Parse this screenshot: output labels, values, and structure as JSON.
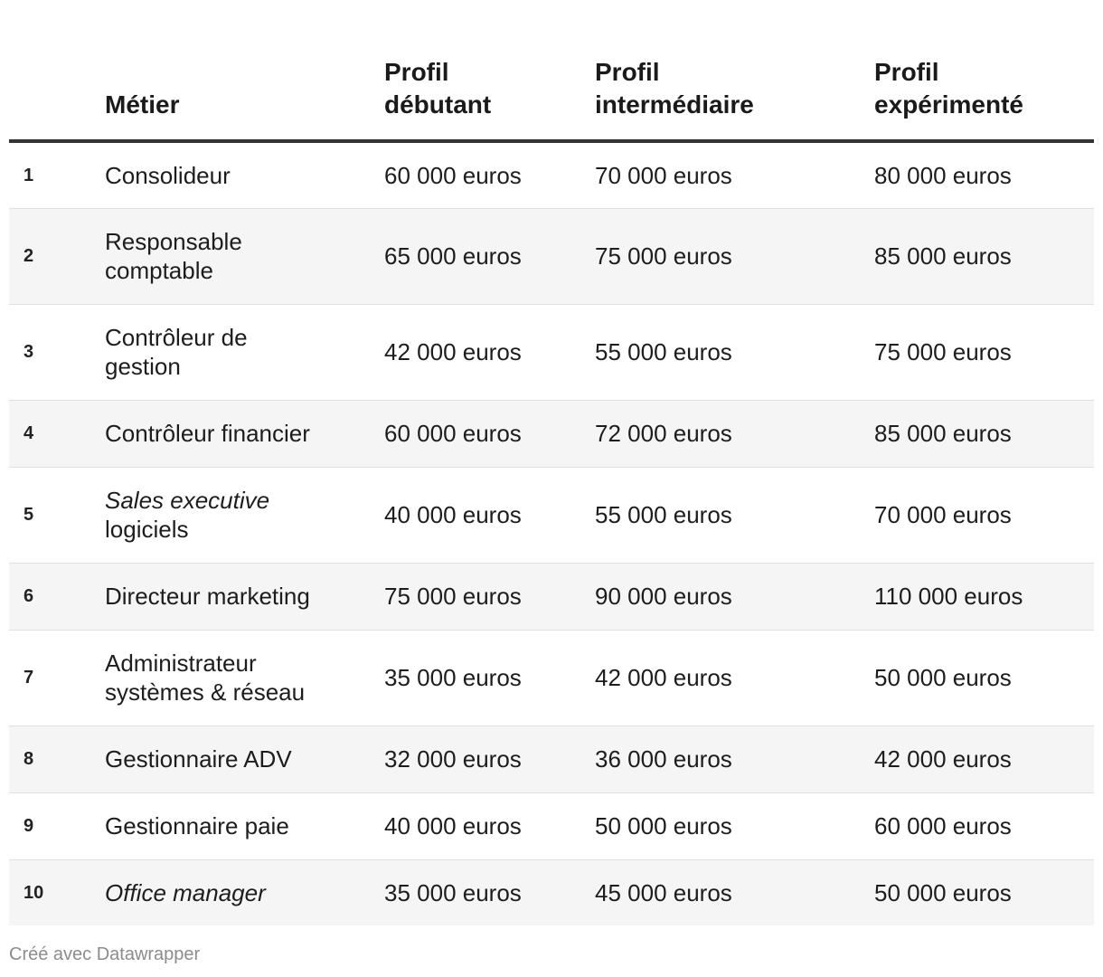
{
  "table": {
    "headers": {
      "rank": "",
      "metier": "Métier",
      "debutant_line1": "Profil",
      "debutant_line2": "débutant",
      "intermediaire_line1": "Profil",
      "intermediaire_line2": "intermédiaire",
      "experimente_line1": "Profil",
      "experimente_line2": "expérimenté"
    },
    "rows": [
      {
        "rank": "1",
        "metier_a": "Consolideur",
        "metier_b": "",
        "debutant": "60 000 euros",
        "intermediaire": "70 000 euros",
        "experimente": "80 000 euros"
      },
      {
        "rank": "2",
        "metier_a": "Responsable",
        "metier_b": "comptable",
        "debutant": "65 000 euros",
        "intermediaire": "75 000 euros",
        "experimente": "85 000 euros"
      },
      {
        "rank": "3",
        "metier_a": "Contrôleur de",
        "metier_b": "gestion",
        "debutant": "42 000 euros",
        "intermediaire": "55 000 euros",
        "experimente": "75 000 euros"
      },
      {
        "rank": "4",
        "metier_a": "Contrôleur financier",
        "metier_b": "",
        "debutant": "60 000 euros",
        "intermediaire": "72 000 euros",
        "experimente": "85 000 euros"
      },
      {
        "rank": "5",
        "metier_a": "Sales executive",
        "metier_b": "logiciels",
        "debutant": "40 000 euros",
        "intermediaire": "55 000 euros",
        "experimente": "70 000 euros"
      },
      {
        "rank": "6",
        "metier_a": "Directeur marketing",
        "metier_b": "",
        "debutant": "75 000 euros",
        "intermediaire": "90 000 euros",
        "experimente": "110 000 euros"
      },
      {
        "rank": "7",
        "metier_a": "Administrateur",
        "metier_b": "systèmes & réseau",
        "debutant": "35 000 euros",
        "intermediaire": "42 000 euros",
        "experimente": "50 000 euros"
      },
      {
        "rank": "8",
        "metier_a": "Gestionnaire ADV",
        "metier_b": "",
        "debutant": "32 000 euros",
        "intermediaire": "36 000 euros",
        "experimente": "42 000 euros"
      },
      {
        "rank": "9",
        "metier_a": "Gestionnaire paie",
        "metier_b": "",
        "debutant": "40 000 euros",
        "intermediaire": "50 000 euros",
        "experimente": "60 000 euros"
      },
      {
        "rank": "10",
        "metier_a": "Office manager",
        "metier_b": "",
        "debutant": "35 000 euros",
        "intermediaire": "45 000 euros",
        "experimente": "50 000 euros"
      }
    ]
  },
  "footer": {
    "credit": "Créé avec Datawrapper"
  },
  "colors": {
    "header_rule": "#333333",
    "row_alt_background": "#f5f5f5",
    "row_divider": "#e0e0e0",
    "footer_text": "#8c8c8c"
  }
}
